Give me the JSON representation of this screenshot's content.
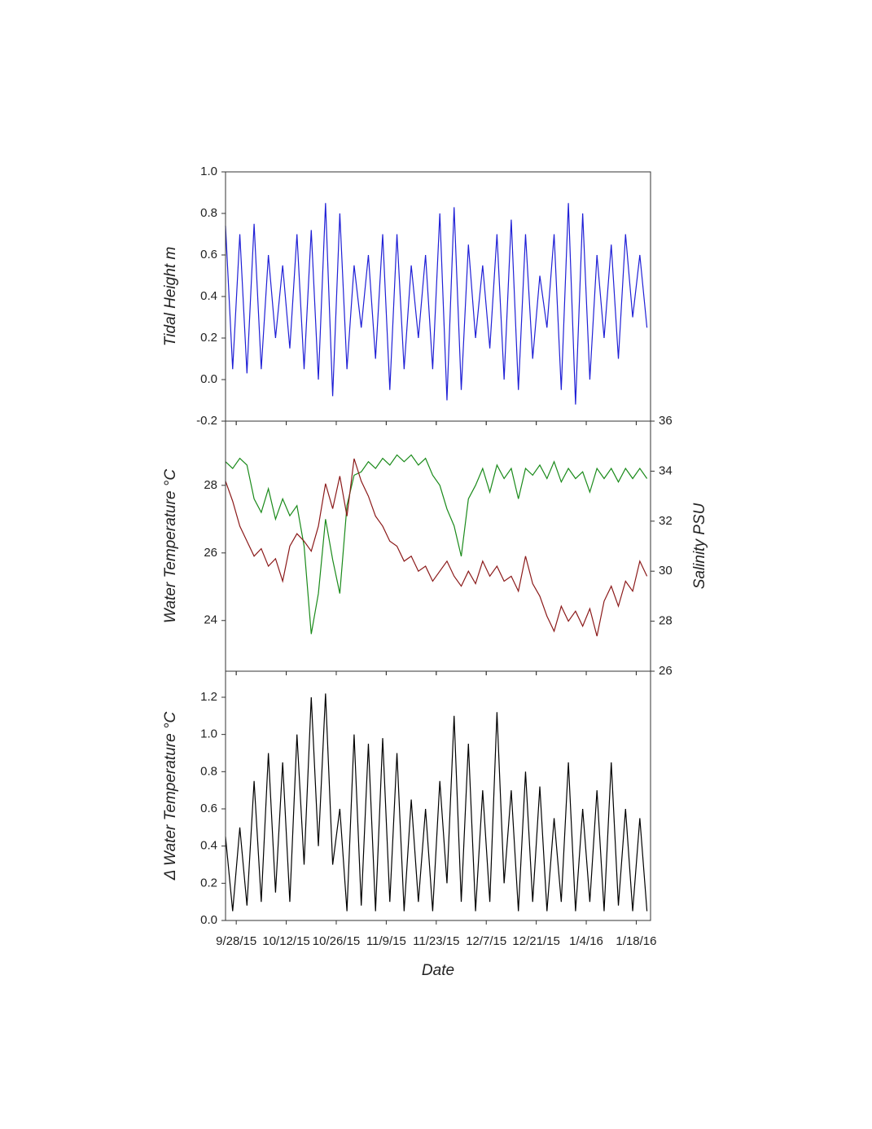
{
  "chart_data": [
    {
      "type": "line",
      "ylabel": "Tidal Height m",
      "x": [
        "2015-09-25",
        "2015-09-27",
        "2015-09-29",
        "2015-10-01",
        "2015-10-03",
        "2015-10-05",
        "2015-10-07",
        "2015-10-09",
        "2015-10-11",
        "2015-10-13",
        "2015-10-15",
        "2015-10-17",
        "2015-10-19",
        "2015-10-21",
        "2015-10-23",
        "2015-10-25",
        "2015-10-27",
        "2015-10-29",
        "2015-10-31",
        "2015-11-02",
        "2015-11-04",
        "2015-11-06",
        "2015-11-08",
        "2015-11-10",
        "2015-11-12",
        "2015-11-14",
        "2015-11-16",
        "2015-11-18",
        "2015-11-20",
        "2015-11-22",
        "2015-11-24",
        "2015-11-26",
        "2015-11-28",
        "2015-11-30",
        "2015-12-02",
        "2015-12-04",
        "2015-12-06",
        "2015-12-08",
        "2015-12-10",
        "2015-12-12",
        "2015-12-14",
        "2015-12-16",
        "2015-12-18",
        "2015-12-20",
        "2015-12-22",
        "2015-12-24",
        "2015-12-26",
        "2015-12-28",
        "2015-12-30",
        "2016-01-01",
        "2016-01-03",
        "2016-01-05",
        "2016-01-07",
        "2016-01-09",
        "2016-01-11",
        "2016-01-13",
        "2016-01-15",
        "2016-01-17",
        "2016-01-19",
        "2016-01-21"
      ],
      "xlim": [
        "2015-09-25",
        "2016-01-22"
      ],
      "ylim": [
        -0.2,
        1.0
      ],
      "yticks": [
        -0.2,
        {
          "value": 0,
          "label": "0.0"
        },
        0.2,
        0.4,
        0.6,
        0.8,
        {
          "value": 1,
          "label": "1.0"
        }
      ],
      "series": [
        {
          "color": "#1f1fd6",
          "values": [
            0.74,
            0.05,
            0.7,
            0.03,
            0.75,
            0.05,
            0.6,
            0.2,
            0.55,
            0.15,
            0.7,
            0.05,
            0.72,
            0.0,
            0.85,
            -0.08,
            0.8,
            0.05,
            0.55,
            0.25,
            0.6,
            0.1,
            0.7,
            -0.05,
            0.7,
            0.05,
            0.55,
            0.2,
            0.6,
            0.05,
            0.8,
            -0.1,
            0.83,
            -0.05,
            0.65,
            0.2,
            0.55,
            0.15,
            0.7,
            0.0,
            0.77,
            -0.05,
            0.7,
            0.1,
            0.5,
            0.25,
            0.7,
            -0.05,
            0.85,
            -0.12,
            0.8,
            0.0,
            0.6,
            0.2,
            0.65,
            0.1,
            0.7,
            0.3,
            0.6,
            0.25
          ]
        }
      ]
    },
    {
      "type": "line",
      "ylabel": "Water Temperature °C",
      "y2label": "Salinity PSU",
      "ylabel_color": "#1a8a1a",
      "y2label_color": "#8b1a1a",
      "x": [
        "2015-09-25",
        "2015-09-27",
        "2015-09-29",
        "2015-10-01",
        "2015-10-03",
        "2015-10-05",
        "2015-10-07",
        "2015-10-09",
        "2015-10-11",
        "2015-10-13",
        "2015-10-15",
        "2015-10-17",
        "2015-10-19",
        "2015-10-21",
        "2015-10-23",
        "2015-10-25",
        "2015-10-27",
        "2015-10-29",
        "2015-10-31",
        "2015-11-02",
        "2015-11-04",
        "2015-11-06",
        "2015-11-08",
        "2015-11-10",
        "2015-11-12",
        "2015-11-14",
        "2015-11-16",
        "2015-11-18",
        "2015-11-20",
        "2015-11-22",
        "2015-11-24",
        "2015-11-26",
        "2015-11-28",
        "2015-11-30",
        "2015-12-02",
        "2015-12-04",
        "2015-12-06",
        "2015-12-08",
        "2015-12-10",
        "2015-12-12",
        "2015-12-14",
        "2015-12-16",
        "2015-12-18",
        "2015-12-20",
        "2015-12-22",
        "2015-12-24",
        "2015-12-26",
        "2015-12-28",
        "2015-12-30",
        "2016-01-01",
        "2016-01-03",
        "2016-01-05",
        "2016-01-07",
        "2016-01-09",
        "2016-01-11",
        "2016-01-13",
        "2016-01-15",
        "2016-01-17",
        "2016-01-19",
        "2016-01-21"
      ],
      "xlim": [
        "2015-09-25",
        "2016-01-22"
      ],
      "ylim": [
        22.5,
        29.9
      ],
      "yticks": [
        24,
        26,
        28
      ],
      "y2lim": [
        26,
        36
      ],
      "y2ticks": [
        26,
        28,
        30,
        32,
        34,
        36
      ],
      "series": [
        {
          "color": "#1a8a1a",
          "values": [
            28.7,
            28.5,
            28.8,
            28.6,
            27.6,
            27.2,
            27.9,
            27.0,
            27.6,
            27.1,
            27.4,
            26.2,
            23.6,
            24.8,
            27.0,
            25.8,
            24.8,
            27.4,
            28.3,
            28.4,
            28.7,
            28.5,
            28.8,
            28.6,
            28.9,
            28.7,
            28.9,
            28.6,
            28.8,
            28.3,
            28.0,
            27.3,
            26.8,
            25.9,
            27.6,
            28.0,
            28.5,
            27.8,
            28.6,
            28.2,
            28.5,
            27.6,
            28.5,
            28.3,
            28.6,
            28.2,
            28.7,
            28.1,
            28.5,
            28.2,
            28.4,
            27.8,
            28.5,
            28.2,
            28.5,
            28.1,
            28.5,
            28.2,
            28.5,
            28.2
          ]
        },
        {
          "color": "#8b1a1a",
          "axis": "y2",
          "values": [
            33.6,
            32.8,
            31.8,
            31.2,
            30.6,
            30.9,
            30.2,
            30.5,
            29.6,
            31.0,
            31.5,
            31.2,
            30.8,
            31.8,
            33.5,
            32.5,
            33.8,
            32.2,
            34.5,
            33.6,
            33.0,
            32.2,
            31.8,
            31.2,
            31.0,
            30.4,
            30.6,
            30.0,
            30.2,
            29.6,
            30.0,
            30.4,
            29.8,
            29.4,
            30.0,
            29.5,
            30.4,
            29.8,
            30.2,
            29.6,
            29.8,
            29.2,
            30.6,
            29.5,
            29.0,
            28.2,
            27.6,
            28.6,
            28.0,
            28.4,
            27.8,
            28.5,
            27.4,
            28.8,
            29.4,
            28.6,
            29.6,
            29.2,
            30.4,
            29.8
          ]
        }
      ]
    },
    {
      "type": "line",
      "ylabel": "Δ Water Temperature °C",
      "xlabel": "Date",
      "x": [
        "2015-09-25",
        "2015-09-27",
        "2015-09-29",
        "2015-10-01",
        "2015-10-03",
        "2015-10-05",
        "2015-10-07",
        "2015-10-09",
        "2015-10-11",
        "2015-10-13",
        "2015-10-15",
        "2015-10-17",
        "2015-10-19",
        "2015-10-21",
        "2015-10-23",
        "2015-10-25",
        "2015-10-27",
        "2015-10-29",
        "2015-10-31",
        "2015-11-02",
        "2015-11-04",
        "2015-11-06",
        "2015-11-08",
        "2015-11-10",
        "2015-11-12",
        "2015-11-14",
        "2015-11-16",
        "2015-11-18",
        "2015-11-20",
        "2015-11-22",
        "2015-11-24",
        "2015-11-26",
        "2015-11-28",
        "2015-11-30",
        "2015-12-02",
        "2015-12-04",
        "2015-12-06",
        "2015-12-08",
        "2015-12-10",
        "2015-12-12",
        "2015-12-14",
        "2015-12-16",
        "2015-12-18",
        "2015-12-20",
        "2015-12-22",
        "2015-12-24",
        "2015-12-26",
        "2015-12-28",
        "2015-12-30",
        "2016-01-01",
        "2016-01-03",
        "2016-01-05",
        "2016-01-07",
        "2016-01-09",
        "2016-01-11",
        "2016-01-13",
        "2016-01-15",
        "2016-01-17",
        "2016-01-19",
        "2016-01-21"
      ],
      "xlim": [
        "2015-09-25",
        "2016-01-22"
      ],
      "xticks": [
        {
          "value": "2015-09-28",
          "label": "9/28/15"
        },
        {
          "value": "2015-10-12",
          "label": "10/12/15"
        },
        {
          "value": "2015-10-26",
          "label": "10/26/15"
        },
        {
          "value": "2015-11-09",
          "label": "11/9/15"
        },
        {
          "value": "2015-11-23",
          "label": "11/23/15"
        },
        {
          "value": "2015-12-07",
          "label": "12/7/15"
        },
        {
          "value": "2015-12-21",
          "label": "12/21/15"
        },
        {
          "value": "2016-01-04",
          "label": "1/4/16"
        },
        {
          "value": "2016-01-18",
          "label": "1/18/16"
        }
      ],
      "ylim": [
        0,
        1.34
      ],
      "yticks": [
        {
          "value": 0,
          "label": "0.0"
        },
        0.2,
        0.4,
        0.6,
        0.8,
        {
          "value": 1,
          "label": "1.0"
        },
        1.2
      ],
      "series": [
        {
          "color": "#000000",
          "values": [
            0.45,
            0.05,
            0.5,
            0.08,
            0.75,
            0.1,
            0.9,
            0.15,
            0.85,
            0.1,
            1.0,
            0.3,
            1.2,
            0.4,
            1.22,
            0.3,
            0.6,
            0.05,
            1.0,
            0.08,
            0.95,
            0.05,
            0.98,
            0.1,
            0.9,
            0.05,
            0.65,
            0.1,
            0.6,
            0.05,
            0.75,
            0.2,
            1.1,
            0.1,
            0.95,
            0.05,
            0.7,
            0.1,
            1.12,
            0.2,
            0.7,
            0.05,
            0.8,
            0.1,
            0.72,
            0.05,
            0.55,
            0.1,
            0.85,
            0.05,
            0.6,
            0.1,
            0.7,
            0.05,
            0.85,
            0.08,
            0.6,
            0.05,
            0.55,
            0.05
          ]
        }
      ]
    }
  ]
}
